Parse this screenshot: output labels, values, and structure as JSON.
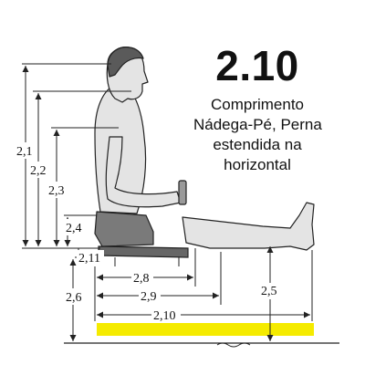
{
  "title": {
    "code": "2.10",
    "lines": [
      "Comprimento",
      "Nádega-Pé, Perna",
      "estendida na",
      "horizontal"
    ]
  },
  "labels": {
    "d21": "2,1",
    "d22": "2,2",
    "d23": "2,3",
    "d24": "2,4",
    "d211": "2,11",
    "d26": "2,6",
    "d28": "2,8",
    "d29": "2,9",
    "d210": "2,10",
    "d25": "2,5"
  },
  "colors": {
    "highlight": "#f5eb00",
    "line": "#222222",
    "skin": "#e4e4e4",
    "shorts": "#7a7a7a",
    "hair": "#5a5a5a"
  }
}
